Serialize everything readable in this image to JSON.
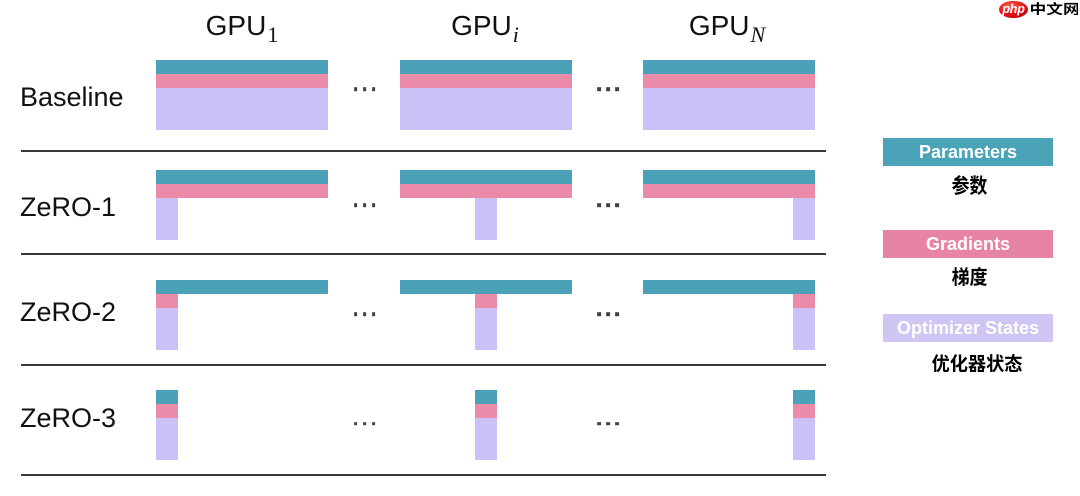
{
  "page": {
    "background": "#ffffff"
  },
  "watermark": {
    "brand_prefix": "php",
    "brand_suffix": "中文网"
  },
  "diagram": {
    "columns": [
      {
        "id": "gpu-1",
        "name": "GPU",
        "sub": "1",
        "italic": false
      },
      {
        "id": "gpu-i",
        "name": "GPU",
        "sub": "i",
        "italic": true
      },
      {
        "id": "gpu-n",
        "name": "GPU",
        "sub": "N",
        "italic": true
      }
    ],
    "ellipsis": "...",
    "rows": [
      {
        "id": "baseline",
        "label": "Baseline",
        "parameters": "full",
        "gradients": "full",
        "optimizer_states": "full"
      },
      {
        "id": "zero-1",
        "label": "ZeRO-1",
        "parameters": "full",
        "gradients": "full",
        "optimizer_states": "shard"
      },
      {
        "id": "zero-2",
        "label": "ZeRO-2",
        "parameters": "full",
        "gradients": "shard",
        "optimizer_states": "shard"
      },
      {
        "id": "zero-3",
        "label": "ZeRO-3",
        "parameters": "shard",
        "gradients": "shard",
        "optimizer_states": "shard"
      }
    ]
  },
  "legend": {
    "entries": [
      {
        "key": "parameters",
        "label_en": "Parameters",
        "label_zh": "参数",
        "color": "#4ba3b8"
      },
      {
        "key": "gradients",
        "label_en": "Gradients",
        "label_zh": "梯度",
        "color": "#e884a3"
      },
      {
        "key": "optimizer_states",
        "label_en": "Optimizer States",
        "label_zh": "优化器状态",
        "color": "#cfc4f2"
      }
    ]
  },
  "colors": {
    "parameters": "#4ba2b8",
    "gradients": "#eb8aa9",
    "optimizer_states": "#ccc1f6",
    "divider": "#3a3a3a",
    "text": "#111111",
    "badge_text": "#ffffff",
    "logo_red": "#e8231d"
  }
}
